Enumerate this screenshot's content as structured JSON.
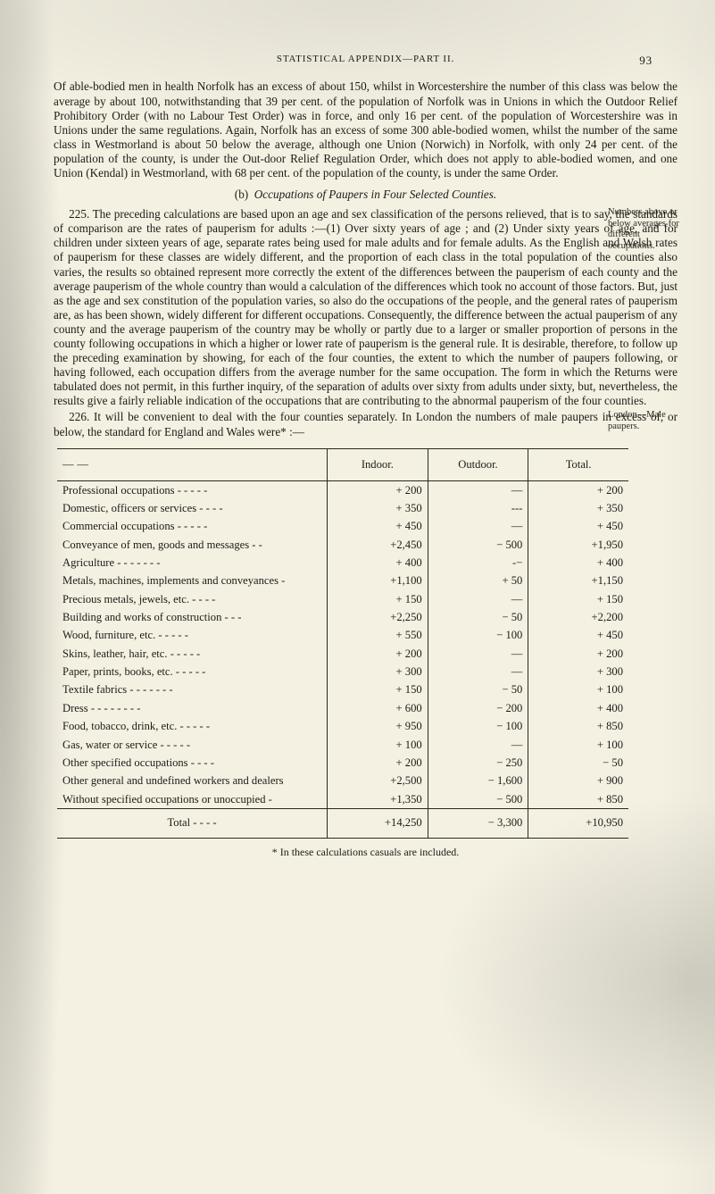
{
  "header": {
    "title": "STATISTICAL APPENDIX—PART II.",
    "page_number": "93"
  },
  "para1": "Of able-bodied men in health Norfolk has an excess of about 150, whilst in Worcestershire the number of this class was below the average by about 100, notwithstanding that 39 per cent. of the population of Norfolk was in Unions in which the Outdoor Relief Prohibitory Order (with no Labour Test Order) was in force, and only 16 per cent. of the population of Worcestershire was in Unions under the same regulations. Again, Norfolk has an excess of some 300 able-bodied women, whilst the number of the same class in Westmorland is about 50 below the average, although one Union (Norwich) in Norfolk, with only 24 per cent. of the population of the county, is under the Out-door Relief Regulation Order, which does not apply to able-bodied women, and one Union (Kendal) in Westmorland, with 68 per cent. of the population of the county, is under the same Order.",
  "subhead_b_paren": "(b)",
  "subhead_b_text": "Occupations of Paupers in Four Selected Counties.",
  "para225": "225. The preceding calculations are based upon an age and sex classification of the persons relieved, that is to say, the standards of comparison are the rates of pauperism for adults :—(1) Over sixty years of age ; and (2) Under sixty years of age, and for children under sixteen years of age, separate rates being used for male adults and for female adults. As the English and Welsh rates of pauperism for these classes are widely different, and the proportion of each class in the total population of the counties also varies, the results so obtained represent more correctly the extent of the differences between the pauperism of each county and the average pauperism of the whole country than would a calculation of the differences which took no account of those factors. But, just as the age and sex constitution of the population varies, so also do the occupations of the people, and the general rates of pauperism are, as has been shown, widely different for different occupations. Consequently, the difference between the actual pauperism of any county and the average pauperism of the country may be wholly or partly due to a larger or smaller proportion of persons in the county following occupations in which a higher or lower rate of pauperism is the general rule. It is desirable, therefore, to follow up the preceding examination by showing, for each of the four counties, the extent to which the number of paupers following, or having followed, each occupation differs from the average number for the same occupation. The form in which the Returns were tabulated does not permit, in this further inquiry, of the separation of adults over sixty from adults under sixty, but, nevertheless, the results give a fairly reliable indication of the occupations that are contributing to the abnormal pauperism of the four counties.",
  "margin225": "Numbers above or below averages for different occupations.",
  "para226": "226. It will be convenient to deal with the four counties separately. In London the numbers of male paupers in excess of, or below, the standard for England and Wales were* :—",
  "margin226": "London—Male paupers.",
  "table": {
    "col_dash": "——",
    "col_indoor": "Indoor.",
    "col_outdoor": "Outdoor.",
    "col_total": "Total.",
    "rows": [
      {
        "label": "Professional occupations  -    -    -    -    -",
        "indoor": "+   200",
        "outdoor": "—",
        "total": "+    200"
      },
      {
        "label": "Domestic, officers or services     -    -    -    -",
        "indoor": "+   350",
        "outdoor": "---",
        "total": "+    350"
      },
      {
        "label": "Commercial occupations   -    -    -    -    -",
        "indoor": "+   450",
        "outdoor": "—",
        "total": "+    450"
      },
      {
        "label": "Conveyance of men, goods and messages   -    -",
        "indoor": "+2,450",
        "outdoor": "−   500",
        "total": "+1,950"
      },
      {
        "label": "Agriculture    -    -    -    -    -    -    -",
        "indoor": "+   400",
        "outdoor": "-−",
        "total": "+    400"
      },
      {
        "label": "Metals, machines, implements and conveyances -",
        "indoor": "+1,100",
        "outdoor": "+     50",
        "total": "+1,150"
      },
      {
        "label": "Precious metals, jewels, etc.     -    -    -    -",
        "indoor": "+   150",
        "outdoor": "—",
        "total": "+    150"
      },
      {
        "label": "Building and works of construction  -    -    -",
        "indoor": "+2,250",
        "outdoor": "−     50",
        "total": "+2,200"
      },
      {
        "label": "Wood, furniture, etc.       -    -    -    -    -",
        "indoor": "+   550",
        "outdoor": "−   100",
        "total": "+    450"
      },
      {
        "label": "Skins, leather, hair, etc.  -    -    -    -    -",
        "indoor": "+   200",
        "outdoor": "—",
        "total": "+    200"
      },
      {
        "label": "Paper, prints, books, etc.  -    -    -    -    -",
        "indoor": "+   300",
        "outdoor": "—",
        "total": "+    300"
      },
      {
        "label": "Textile fabrics  -    -    -    -    -    -    -",
        "indoor": "+   150",
        "outdoor": "−     50",
        "total": "+    100"
      },
      {
        "label": "Dress       -    -    -    -    -    -    -    -",
        "indoor": "+   600",
        "outdoor": "−   200",
        "total": "+    400"
      },
      {
        "label": "Food, tobacco, drink, etc.  -    -    -    -    -",
        "indoor": "+   950",
        "outdoor": "−   100",
        "total": "+    850"
      },
      {
        "label": "Gas, water or service       -    -    -    -    -",
        "indoor": "+   100",
        "outdoor": "—",
        "total": "+    100"
      },
      {
        "label": "Other specified occupations     -    -    -    -",
        "indoor": "+   200",
        "outdoor": "−   250",
        "total": "−      50"
      },
      {
        "label": "Other general and undefined workers and dealers",
        "indoor": "+2,500",
        "outdoor": "− 1,600",
        "total": "+    900"
      },
      {
        "label": "Without specified occupations or unoccupied    -",
        "indoor": "+1,350",
        "outdoor": "−   500",
        "total": "+    850"
      }
    ],
    "total_label": "Total     -    -    -    -",
    "total_indoor": "+14,250",
    "total_outdoor": "− 3,300",
    "total_total": "+10,950"
  },
  "footnote": "* In these calculations casuals are included."
}
